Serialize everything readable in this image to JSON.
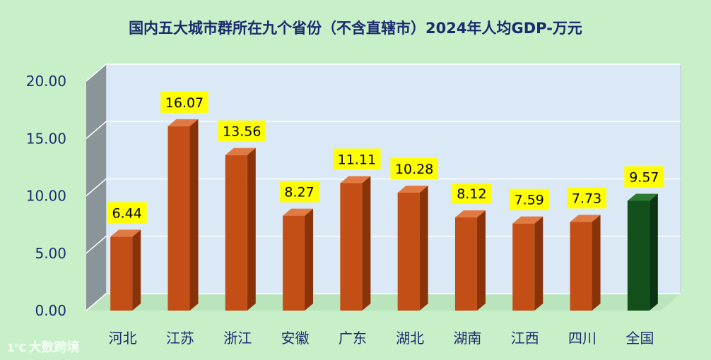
{
  "watermark": {
    "logo_text": "1℃",
    "text": "大数跨境"
  },
  "chart_data": {
    "type": "bar",
    "title": "国内五大城市群所在九个省份（不含直辖市）2024年人均GDP-万元",
    "categories": [
      "河北",
      "江苏",
      "浙江",
      "安徽",
      "广东",
      "湖北",
      "湖南",
      "江西",
      "四川",
      "全国"
    ],
    "values": [
      6.44,
      16.07,
      13.56,
      8.27,
      11.11,
      10.28,
      8.12,
      7.59,
      7.73,
      9.57
    ],
    "data_labels": [
      "6.44",
      "16.07",
      "13.56",
      "8.27",
      "11.11",
      "10.28",
      "8.12",
      "7.59",
      "7.73",
      "9.57"
    ],
    "yticks": [
      "0.00",
      "5.00",
      "10.00",
      "15.00",
      "20.00"
    ],
    "ylim": [
      0,
      20
    ],
    "xlabel": "",
    "ylabel": "",
    "grid": true,
    "colors": {
      "bar": "#c44f16",
      "highlight_bar": "#124f1a",
      "label_bg": "#ffff00",
      "plot_bg": "#dbe9f6",
      "side_wall": "#8a959a"
    },
    "highlight_index": 9
  }
}
